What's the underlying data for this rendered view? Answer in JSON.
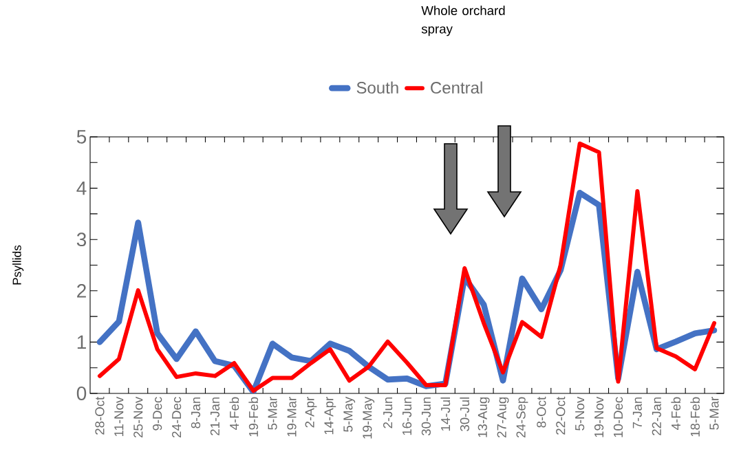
{
  "chart_data": {
    "type": "line",
    "categories": [
      "28-Oct",
      "11-Nov",
      "25-Nov",
      "9-Dec",
      "24-Dec",
      "8-Jan",
      "21-Jan",
      "4-Feb",
      "19-Feb",
      "5-Mar",
      "19-Mar",
      "2-Apr",
      "14-Apr",
      "5-May",
      "19-May",
      "2-Jun",
      "16-Jun",
      "30-Jun",
      "14-Jul",
      "30-Jul",
      "13-Aug",
      "27-Aug",
      "24-Sep",
      "8-Oct",
      "22-Oct",
      "5-Nov",
      "19-Nov",
      "10-Dec",
      "7-Jan",
      "22-Jan",
      "4-Feb",
      "18-Feb",
      "5-Mar"
    ],
    "series": [
      {
        "name": "South",
        "color": "#4472c4",
        "values": [
          1.0,
          1.4,
          3.33,
          1.17,
          0.67,
          1.21,
          0.63,
          0.54,
          0.03,
          0.97,
          0.7,
          0.63,
          0.97,
          0.83,
          0.52,
          0.27,
          0.29,
          0.14,
          0.19,
          2.26,
          1.73,
          0.25,
          2.24,
          1.64,
          2.4,
          3.91,
          3.67,
          0.29,
          2.37,
          0.86,
          1.01,
          1.17,
          1.23
        ]
      },
      {
        "name": "Central",
        "color": "#ff0000",
        "values": [
          0.34,
          0.67,
          2.01,
          0.86,
          0.32,
          0.39,
          0.34,
          0.59,
          0.05,
          0.3,
          0.3,
          0.59,
          0.86,
          0.25,
          0.52,
          1.01,
          0.6,
          0.16,
          0.16,
          2.44,
          1.37,
          0.41,
          1.39,
          1.1,
          2.5,
          4.87,
          4.7,
          0.23,
          3.94,
          0.88,
          0.72,
          0.47,
          1.37
        ]
      }
    ],
    "ylabel": "Psyllids",
    "annotations": [
      "Whole orchard spray"
    ],
    "ylim": [
      0,
      5
    ],
    "yticks": [
      0,
      {
        "value": 0.5,
        "label": null
      },
      1,
      {
        "value": 1.5,
        "label": null
      },
      2,
      {
        "value": 2.5,
        "label": null
      },
      3,
      {
        "value": 3.5,
        "label": null
      },
      4,
      {
        "value": 4.5,
        "label": null
      },
      5
    ],
    "legend": "top",
    "grid": false,
    "marker": "none",
    "line_style": "solid"
  }
}
